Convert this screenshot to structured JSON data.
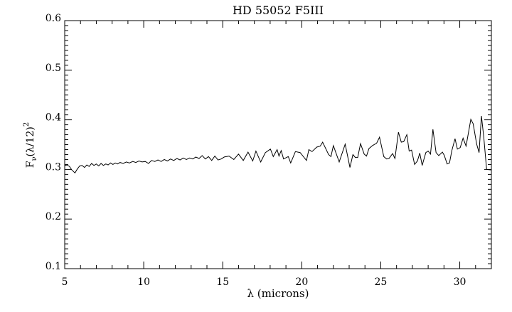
{
  "chart_data": {
    "type": "line",
    "title": "HD 55052 F5III",
    "xlabel": "λ (microns)",
    "ylabel": {
      "base": "F",
      "sub": "ν",
      "rest": "(λ/12)",
      "sup": "2"
    },
    "xlim": [
      5,
      32
    ],
    "ylim": [
      0.1,
      0.6
    ],
    "xticks": [
      5,
      10,
      15,
      20,
      25,
      30
    ],
    "yticks": [
      0.1,
      0.2,
      0.3,
      0.4,
      0.5,
      0.6
    ],
    "xtick_labels": [
      "5",
      "10",
      "15",
      "20",
      "25",
      "30"
    ],
    "ytick_labels": [
      "0.1",
      "0.2",
      "0.3",
      "0.4",
      "0.5",
      "0.6"
    ],
    "x_minor_step": 1,
    "y_minor_step": 0.01,
    "grid": false,
    "line_color": "#000000",
    "series": [
      {
        "x": [
          5.0,
          5.15,
          5.3,
          5.45,
          5.55,
          5.65,
          5.8,
          5.95,
          6.1,
          6.25,
          6.4,
          6.55,
          6.7,
          6.85,
          7.0,
          7.15,
          7.3,
          7.45,
          7.6,
          7.75,
          7.9,
          8.05,
          8.2,
          8.35,
          8.5,
          8.7,
          8.9,
          9.1,
          9.3,
          9.5,
          9.7,
          9.9,
          10.1,
          10.3,
          10.5,
          10.7,
          10.9,
          11.1,
          11.3,
          11.5,
          11.7,
          11.9,
          12.1,
          12.3,
          12.5,
          12.7,
          12.9,
          13.1,
          13.3,
          13.5,
          13.7,
          13.9,
          14.1,
          14.3,
          14.5,
          14.7,
          14.9,
          15.1,
          15.4,
          15.7,
          16.0,
          16.3,
          16.6,
          16.9,
          17.1,
          17.4,
          17.7,
          18.02,
          18.2,
          18.44,
          18.56,
          18.7,
          18.85,
          19.15,
          19.3,
          19.6,
          19.9,
          20.3,
          20.45,
          20.65,
          20.95,
          21.17,
          21.32,
          21.7,
          21.85,
          22.0,
          22.37,
          22.75,
          23.05,
          23.24,
          23.39,
          23.54,
          23.72,
          23.95,
          24.1,
          24.25,
          24.47,
          24.74,
          24.92,
          25.19,
          25.37,
          25.52,
          25.75,
          25.9,
          26.12,
          26.3,
          26.45,
          26.65,
          26.8,
          26.95,
          27.14,
          27.32,
          27.47,
          27.62,
          27.85,
          28.0,
          28.15,
          28.3,
          28.5,
          28.67,
          28.9,
          29.01,
          29.2,
          29.35,
          29.5,
          29.7,
          29.85,
          30.03,
          30.21,
          30.4,
          30.7,
          30.85,
          31.07,
          31.22,
          31.37,
          31.52,
          31.7,
          32.0
        ],
        "y": [
          0.308,
          0.309,
          0.306,
          0.299,
          0.296,
          0.293,
          0.301,
          0.307,
          0.308,
          0.304,
          0.309,
          0.306,
          0.312,
          0.308,
          0.311,
          0.307,
          0.312,
          0.308,
          0.311,
          0.309,
          0.313,
          0.31,
          0.313,
          0.311,
          0.314,
          0.312,
          0.315,
          0.313,
          0.316,
          0.314,
          0.317,
          0.315,
          0.316,
          0.312,
          0.318,
          0.316,
          0.319,
          0.316,
          0.32,
          0.317,
          0.321,
          0.318,
          0.322,
          0.319,
          0.323,
          0.32,
          0.323,
          0.321,
          0.325,
          0.322,
          0.328,
          0.321,
          0.326,
          0.318,
          0.327,
          0.319,
          0.321,
          0.325,
          0.327,
          0.32,
          0.331,
          0.318,
          0.335,
          0.317,
          0.337,
          0.315,
          0.334,
          0.341,
          0.326,
          0.34,
          0.327,
          0.338,
          0.321,
          0.326,
          0.313,
          0.336,
          0.334,
          0.318,
          0.34,
          0.336,
          0.345,
          0.347,
          0.355,
          0.33,
          0.326,
          0.348,
          0.315,
          0.351,
          0.304,
          0.33,
          0.324,
          0.324,
          0.352,
          0.331,
          0.327,
          0.342,
          0.348,
          0.353,
          0.365,
          0.326,
          0.321,
          0.322,
          0.332,
          0.322,
          0.375,
          0.355,
          0.356,
          0.37,
          0.337,
          0.339,
          0.31,
          0.317,
          0.333,
          0.308,
          0.334,
          0.337,
          0.331,
          0.381,
          0.334,
          0.328,
          0.335,
          0.329,
          0.311,
          0.313,
          0.338,
          0.362,
          0.341,
          0.344,
          0.363,
          0.347,
          0.401,
          0.392,
          0.351,
          0.334,
          0.408,
          0.365,
          0.3,
          0.299
        ]
      }
    ]
  }
}
